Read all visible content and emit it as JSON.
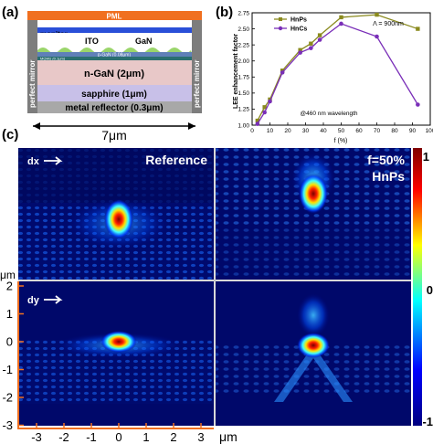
{
  "panel_labels": {
    "a": "(a)",
    "b": "(b)",
    "c": "(c)"
  },
  "device": {
    "pml": "PML",
    "monitor": "monitor",
    "ito": "ITO",
    "gan": "GaN",
    "pgan": "p-GaN (0.08μm)",
    "mqw": "MQWs (0.1μm)",
    "ngan": "n-GaN (2μm)",
    "sapphire": "sapphire (1μm)",
    "metal": "metal reflector (0.3μm)",
    "mirror_left": "perfect mirror",
    "mirror_right": "perfect mirror",
    "width_label": "7μm"
  },
  "chart_data": {
    "type": "line",
    "ylabel": "LEE enhancement factor",
    "xlabel": "f (%)",
    "xlim": [
      0,
      100
    ],
    "ylim": [
      1.0,
      2.75
    ],
    "xticks": [
      0,
      10,
      20,
      30,
      40,
      50,
      60,
      70,
      80,
      90,
      100
    ],
    "yticks": [
      1.0,
      1.25,
      1.5,
      1.75,
      2.0,
      2.25,
      2.5,
      2.75
    ],
    "legend_position": "top-left",
    "annotation_lambda": "Λ = 900nm",
    "annotation_wavelength": "@460 nm wavelength",
    "series": [
      {
        "name": "HnPs",
        "color": "#8a8a1e",
        "marker": "square",
        "x": [
          3,
          7,
          10,
          17,
          27,
          33,
          38,
          50,
          70,
          93
        ],
        "y": [
          1.07,
          1.28,
          1.4,
          1.85,
          2.17,
          2.27,
          2.4,
          2.68,
          2.72,
          2.5
        ]
      },
      {
        "name": "HnCs",
        "color": "#7a2fb8",
        "marker": "circle",
        "x": [
          3,
          7,
          10,
          17,
          27,
          33,
          38,
          50,
          70,
          93
        ],
        "y": [
          1.02,
          1.2,
          1.37,
          1.82,
          2.13,
          2.2,
          2.33,
          2.58,
          2.38,
          1.32
        ]
      }
    ]
  },
  "field": {
    "label_dx": "dx",
    "label_dy": "dy",
    "reference": "Reference",
    "f_label": "f=50%",
    "hnps_label": "HnPs",
    "y_unit": "μm",
    "x_unit": "μm",
    "y_ticks": [
      "2",
      "1",
      "0",
      "-1",
      "-2",
      "-3"
    ],
    "x_ticks": [
      "-3",
      "-2",
      "-1",
      "0",
      "1",
      "2",
      "3"
    ],
    "colorbar_ticks": [
      "1",
      "0",
      "-1"
    ],
    "colorbar_colors": [
      "#800000",
      "#ff0000",
      "#ffff00",
      "#00ffff",
      "#0000ff",
      "#000080"
    ]
  }
}
